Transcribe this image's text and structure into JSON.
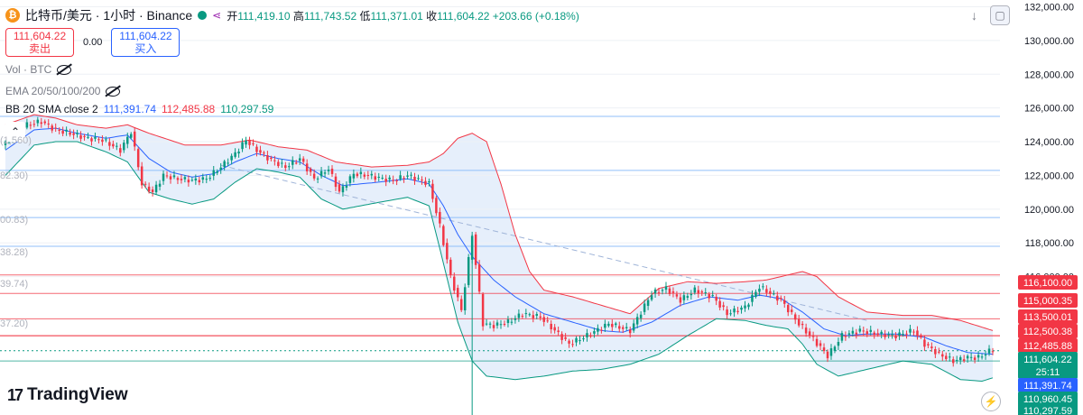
{
  "header": {
    "coin_icon": "bitcoin-icon",
    "coin_glyph": "₿",
    "symbol": "比特币/美元 · 1小时 · Binance",
    "open_label": "开",
    "open": "111,419.10",
    "high_label": "高",
    "high": "111,743.52",
    "low_label": "低",
    "low": "111,371.01",
    "close_label": "收",
    "close": "111,604.22",
    "change": "+203.66 (+0.18%)"
  },
  "trade": {
    "sell_price": "111,604.22",
    "sell_label": "卖出",
    "spread": "0.00",
    "buy_price": "111,604.22",
    "buy_label": "买入"
  },
  "indicators": {
    "vol": "Vol · BTC",
    "ema": "EMA 20/50/100/200",
    "bb_name": "BB 20 SMA close 2",
    "bb_basis": "111,391.74",
    "bb_upper": "112,485.88",
    "bb_lower": "110,297.59"
  },
  "brand": {
    "logo": "17",
    "name": "TradingView"
  },
  "colors": {
    "up": "#089981",
    "down": "#f23645",
    "basis": "#2962ff",
    "upper": "#f23645",
    "lower": "#089981",
    "fill": "#e3edfb",
    "red_level": "#f23645",
    "blue_level": "#2962ff"
  },
  "partial_left_labels": [
    "(1,560)",
    "82.30)",
    "00.83)",
    "38.28)",
    "39.74)",
    "37.20)"
  ],
  "chart_data": {
    "type": "candlestick",
    "title": "比特币/美元 · 1小时 · Binance",
    "ylim": [
      109400,
      132400
    ],
    "y_ticks": [
      132000,
      130000,
      128000,
      126000,
      124000,
      122000,
      120000,
      118000,
      116000
    ],
    "y_tick_labels": [
      "132,000.00",
      "130,000.00",
      "128,000.00",
      "126,000.00",
      "124,000.00",
      "122,000.00",
      "120,000.00",
      "118,000.00",
      "116,000.00"
    ],
    "anchors": {
      "close": [
        [
          0,
          124000
        ],
        [
          6,
          125000
        ],
        [
          10,
          125200
        ],
        [
          14,
          124700
        ],
        [
          18,
          124500
        ],
        [
          23,
          124200
        ],
        [
          27,
          124100
        ],
        [
          32,
          123500
        ],
        [
          35,
          124600
        ],
        [
          38,
          121500
        ],
        [
          41,
          121000
        ],
        [
          44,
          122000
        ],
        [
          48,
          121800
        ],
        [
          52,
          121700
        ],
        [
          56,
          121800
        ],
        [
          60,
          122500
        ],
        [
          64,
          123300
        ],
        [
          67,
          124100
        ],
        [
          70,
          123500
        ],
        [
          74,
          122900
        ],
        [
          78,
          122500
        ],
        [
          82,
          123000
        ],
        [
          86,
          121800
        ],
        [
          90,
          122400
        ],
        [
          93,
          121000
        ],
        [
          97,
          122100
        ],
        [
          101,
          122000
        ],
        [
          105,
          121800
        ],
        [
          108,
          121700
        ],
        [
          112,
          122000
        ],
        [
          118,
          121500
        ],
        [
          121,
          119000
        ],
        [
          124,
          116000
        ],
        [
          127,
          114000
        ],
        [
          130,
          118500
        ],
        [
          133,
          113200
        ],
        [
          136,
          113100
        ],
        [
          140,
          113300
        ],
        [
          144,
          113800
        ],
        [
          149,
          113600
        ],
        [
          153,
          112800
        ],
        [
          157,
          112000
        ],
        [
          162,
          112500
        ],
        [
          168,
          113200
        ],
        [
          174,
          112800
        ],
        [
          180,
          115000
        ],
        [
          184,
          115300
        ],
        [
          188,
          114600
        ],
        [
          192,
          115200
        ],
        [
          197,
          114800
        ],
        [
          201,
          113800
        ],
        [
          206,
          114200
        ],
        [
          210,
          115400
        ],
        [
          216,
          114600
        ],
        [
          221,
          113200
        ],
        [
          225,
          112300
        ],
        [
          229,
          111300
        ],
        [
          233,
          112500
        ],
        [
          238,
          112800
        ],
        [
          243,
          112600
        ],
        [
          248,
          112500
        ],
        [
          253,
          112800
        ],
        [
          256,
          112000
        ],
        [
          260,
          111400
        ],
        [
          264,
          111000
        ],
        [
          268,
          111200
        ],
        [
          271,
          111200
        ],
        [
          275,
          111700
        ]
      ],
      "basis": [
        [
          0,
          123500
        ],
        [
          8,
          124700
        ],
        [
          14,
          124800
        ],
        [
          20,
          124500
        ],
        [
          28,
          124200
        ],
        [
          34,
          124400
        ],
        [
          40,
          123000
        ],
        [
          46,
          122200
        ],
        [
          52,
          121900
        ],
        [
          58,
          122100
        ],
        [
          64,
          122800
        ],
        [
          70,
          123300
        ],
        [
          76,
          123000
        ],
        [
          82,
          122800
        ],
        [
          88,
          122000
        ],
        [
          94,
          121400
        ],
        [
          104,
          121600
        ],
        [
          112,
          121800
        ],
        [
          118,
          121500
        ],
        [
          122,
          120200
        ],
        [
          126,
          118500
        ],
        [
          130,
          117200
        ],
        [
          136,
          115800
        ],
        [
          142,
          114800
        ],
        [
          150,
          113800
        ],
        [
          158,
          113300
        ],
        [
          166,
          112800
        ],
        [
          172,
          112700
        ],
        [
          180,
          113300
        ],
        [
          188,
          114300
        ],
        [
          196,
          114800
        ],
        [
          204,
          114600
        ],
        [
          210,
          114900
        ],
        [
          216,
          114700
        ],
        [
          222,
          113900
        ],
        [
          228,
          112900
        ],
        [
          234,
          112500
        ],
        [
          240,
          112600
        ],
        [
          248,
          112600
        ],
        [
          256,
          112400
        ],
        [
          262,
          111900
        ],
        [
          268,
          111500
        ],
        [
          275,
          111400
        ]
      ],
      "upper": [
        [
          0,
          125000
        ],
        [
          8,
          125600
        ],
        [
          14,
          125400
        ],
        [
          20,
          125000
        ],
        [
          28,
          124800
        ],
        [
          34,
          125000
        ],
        [
          40,
          124500
        ],
        [
          50,
          123800
        ],
        [
          60,
          123800
        ],
        [
          68,
          124100
        ],
        [
          76,
          123700
        ],
        [
          84,
          123500
        ],
        [
          92,
          122800
        ],
        [
          102,
          122500
        ],
        [
          112,
          122600
        ],
        [
          118,
          122800
        ],
        [
          122,
          123300
        ],
        [
          126,
          124200
        ],
        [
          130,
          124500
        ],
        [
          134,
          124000
        ],
        [
          138,
          121500
        ],
        [
          142,
          118500
        ],
        [
          146,
          116300
        ],
        [
          150,
          115200
        ],
        [
          158,
          114800
        ],
        [
          166,
          114300
        ],
        [
          174,
          113800
        ],
        [
          182,
          115300
        ],
        [
          190,
          115700
        ],
        [
          198,
          115600
        ],
        [
          206,
          115700
        ],
        [
          212,
          115800
        ],
        [
          218,
          116100
        ],
        [
          222,
          116300
        ],
        [
          226,
          116000
        ],
        [
          232,
          114800
        ],
        [
          240,
          113900
        ],
        [
          250,
          113700
        ],
        [
          258,
          113700
        ],
        [
          266,
          113400
        ],
        [
          272,
          113000
        ],
        [
          275,
          112800
        ]
      ],
      "lower": [
        [
          0,
          122000
        ],
        [
          8,
          123800
        ],
        [
          14,
          124000
        ],
        [
          20,
          124000
        ],
        [
          28,
          123400
        ],
        [
          34,
          122800
        ],
        [
          40,
          121000
        ],
        [
          46,
          120600
        ],
        [
          52,
          120300
        ],
        [
          58,
          120600
        ],
        [
          64,
          121600
        ],
        [
          70,
          122400
        ],
        [
          76,
          122200
        ],
        [
          82,
          121900
        ],
        [
          88,
          120600
        ],
        [
          94,
          120000
        ],
        [
          104,
          120400
        ],
        [
          112,
          120700
        ],
        [
          118,
          120200
        ],
        [
          122,
          116800
        ],
        [
          126,
          113300
        ],
        [
          130,
          111000
        ],
        [
          134,
          110100
        ],
        [
          138,
          110000
        ],
        [
          142,
          109900
        ],
        [
          150,
          110100
        ],
        [
          158,
          110400
        ],
        [
          166,
          110500
        ],
        [
          174,
          110800
        ],
        [
          182,
          111400
        ],
        [
          190,
          112500
        ],
        [
          198,
          113500
        ],
        [
          206,
          113400
        ],
        [
          212,
          113100
        ],
        [
          218,
          112900
        ],
        [
          222,
          112000
        ],
        [
          226,
          110800
        ],
        [
          232,
          110100
        ],
        [
          240,
          110500
        ],
        [
          250,
          111000
        ],
        [
          258,
          110800
        ],
        [
          266,
          109900
        ],
        [
          272,
          109800
        ],
        [
          275,
          110000
        ]
      ]
    },
    "levels": [
      {
        "value": 116100,
        "label": "116,100.00",
        "color": "#f23645"
      },
      {
        "value": 115000,
        "label": "115,000.35",
        "color": "#f23645"
      },
      {
        "value": 113500,
        "label": "113,500.01",
        "color": "#f23645"
      },
      {
        "value": 112500,
        "label": "112,500.38",
        "color": "#f23645"
      },
      {
        "value": 112486,
        "label": "112,485.88",
        "color": "#f23645"
      },
      {
        "value": 111604,
        "label": "111,604.22",
        "color": "#089981",
        "sub": "25:11"
      },
      {
        "value": 111392,
        "label": "111,391.74",
        "color": "#2962ff"
      },
      {
        "value": 110960,
        "label": "110,960.45",
        "color": "#089981"
      },
      {
        "value": 110298,
        "label": "110,297.59",
        "color": "#089981"
      }
    ],
    "blue_hlines": [
      125500,
      122300,
      119500,
      117800
    ],
    "green_hline": 111000,
    "current_price": 111604.22,
    "countdown": "25:11",
    "grid": true,
    "legend_position": "top-left"
  }
}
